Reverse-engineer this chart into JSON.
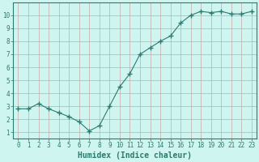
{
  "x": [
    0,
    1,
    2,
    3,
    4,
    5,
    6,
    7,
    8,
    9,
    10,
    11,
    12,
    13,
    14,
    15,
    16,
    17,
    18,
    19,
    20,
    21,
    22,
    23
  ],
  "y": [
    2.8,
    2.8,
    3.2,
    2.8,
    2.5,
    2.2,
    1.8,
    1.1,
    1.5,
    3.0,
    4.5,
    5.5,
    7.0,
    7.5,
    8.0,
    8.4,
    9.4,
    10.0,
    10.3,
    10.2,
    10.3,
    10.1,
    10.1,
    10.3
  ],
  "line_color": "#2d7a6e",
  "marker": "+",
  "marker_size": 4,
  "bg_color": "#cef5f0",
  "grid_color": "#c8a8a8",
  "xlabel": "Humidex (Indice chaleur)",
  "ylim": [
    0.5,
    11
  ],
  "xlim": [
    -0.5,
    23.5
  ],
  "yticks": [
    1,
    2,
    3,
    4,
    5,
    6,
    7,
    8,
    9,
    10
  ],
  "xticks": [
    0,
    1,
    2,
    3,
    4,
    5,
    6,
    7,
    8,
    9,
    10,
    11,
    12,
    13,
    14,
    15,
    16,
    17,
    18,
    19,
    20,
    21,
    22,
    23
  ],
  "tick_label_fontsize": 5.5,
  "xlabel_fontsize": 7,
  "xlabel_color": "#2d7a6e",
  "tick_color": "#2d7a6e",
  "spine_color": "#2d7a6e",
  "linewidth": 0.8
}
